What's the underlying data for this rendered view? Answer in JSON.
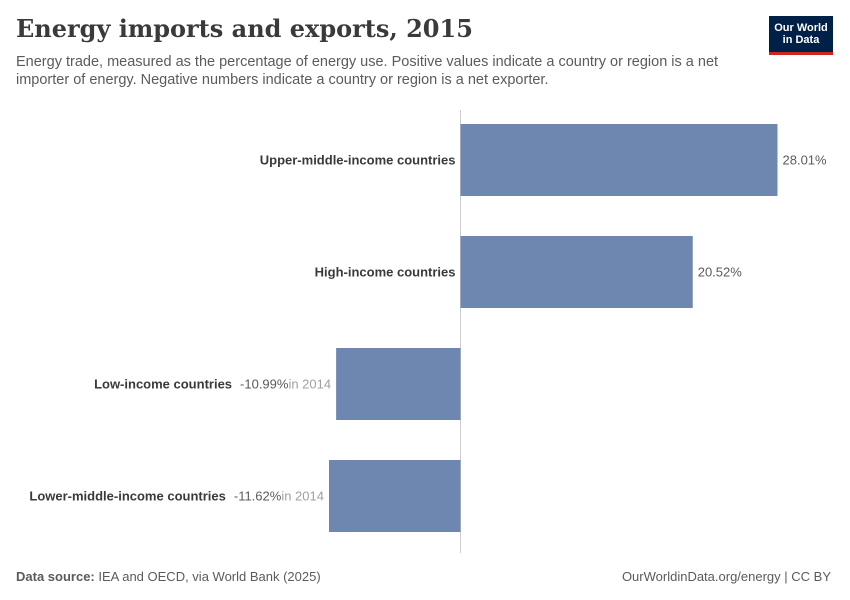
{
  "title": "Energy imports and exports, 2015",
  "subtitle": "Energy trade, measured as the percentage of energy use. Positive values indicate a country or region is a net importer of energy. Negative numbers indicate a country or region is a net exporter.",
  "logo": {
    "line1": "Our World",
    "line2": "in Data"
  },
  "footer": {
    "source_label": "Data source:",
    "source_text": "IEA and OECD, via World Bank (2025)",
    "right": "OurWorldinData.org/energy | CC BY"
  },
  "colors": {
    "bar": "#6d87b0",
    "zero_line": "#cccccc",
    "label": "#3a3a3a",
    "value": "#5b5b5b",
    "note": "#a1a1a1"
  },
  "chart_data": {
    "type": "bar",
    "orientation": "horizontal",
    "unit": "%",
    "categories": [
      "Upper-middle-income countries",
      "High-income countries",
      "Low-income countries",
      "Lower-middle-income countries"
    ],
    "values": [
      28.01,
      20.52,
      -10.99,
      -11.62
    ],
    "value_labels": [
      "28.01%",
      "20.52%",
      "-10.99%",
      "-11.62%"
    ],
    "year_notes": [
      "",
      "",
      "in 2014",
      "in 2014"
    ]
  }
}
